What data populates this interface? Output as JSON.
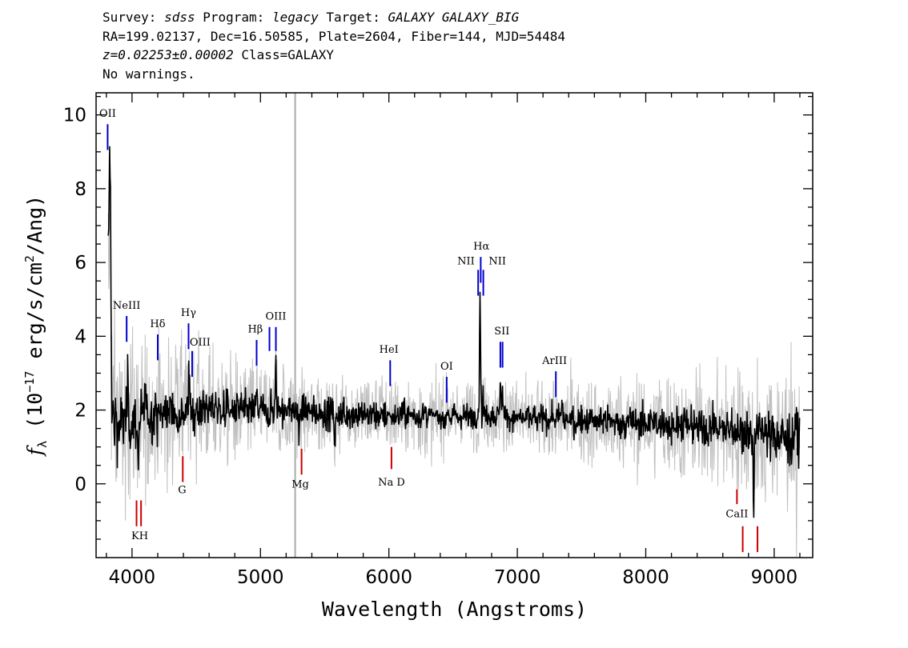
{
  "header": {
    "survey_label": "Survey:",
    "survey": "sdss",
    "program_label": "Program:",
    "program": "legacy",
    "target_label": "Target:",
    "target": "GALAXY GALAXY_BIG",
    "coords": "RA=199.02137, Dec=16.50585, Plate=2604, Fiber=144, MJD=54484",
    "redshift": "z=0.02253±0.00002",
    "class_text": "Class=GALAXY",
    "warnings": "No warnings."
  },
  "colors": {
    "flux": "#000000",
    "error": "#c0c0c0",
    "emission": "#0000cc",
    "absorption": "#cc0000",
    "marker": "#aaaaaa"
  },
  "chart_data": {
    "type": "line",
    "xlabel": "Wavelength (Angstroms)",
    "ylabel_parts": [
      "f",
      "λ",
      " (10",
      "−17",
      " erg/s/cm",
      "2",
      "/Ang)"
    ],
    "xlim": [
      3720,
      9300
    ],
    "ylim": [
      -2.0,
      10.6
    ],
    "x_ticks": [
      4000,
      5000,
      6000,
      7000,
      8000,
      9000
    ],
    "y_ticks": [
      0,
      2,
      4,
      6,
      8,
      10
    ],
    "vertical_marker_x": 5270,
    "spectrum_anchors": {
      "x": [
        3815,
        3830,
        3850,
        3900,
        4000,
        4200,
        4400,
        4600,
        4800,
        5000,
        5200,
        5400,
        5600,
        5800,
        6000,
        6200,
        6400,
        6600,
        6800,
        7000,
        7200,
        7400,
        7600,
        7800,
        8000,
        8200,
        8400,
        8600,
        8800,
        9000,
        9200
      ],
      "flux": [
        5.6,
        2.2,
        1.8,
        1.6,
        1.7,
        1.9,
        2.0,
        2.05,
        2.0,
        2.0,
        2.0,
        1.95,
        1.9,
        1.9,
        1.85,
        1.85,
        1.8,
        1.85,
        1.85,
        1.8,
        1.75,
        1.75,
        1.7,
        1.65,
        1.65,
        1.6,
        1.55,
        1.5,
        1.4,
        1.3,
        1.2
      ],
      "error": [
        2.0,
        1.6,
        1.5,
        1.3,
        1.2,
        1.0,
        0.9,
        0.8,
        0.75,
        0.7,
        0.65,
        0.6,
        0.6,
        0.6,
        0.55,
        0.55,
        0.5,
        0.5,
        0.5,
        0.5,
        0.55,
        0.6,
        0.6,
        0.65,
        0.7,
        0.75,
        0.8,
        0.85,
        0.9,
        1.0,
        1.1
      ]
    },
    "features": [
      {
        "x": 3829,
        "amp": 6.5,
        "w": 6
      },
      {
        "x": 3968,
        "amp": 1.2,
        "w": 4
      },
      {
        "x": 4102,
        "amp": 0.6,
        "w": 4
      },
      {
        "x": 4443,
        "amp": 0.8,
        "w": 4
      },
      {
        "x": 4972,
        "amp": 0.6,
        "w": 4
      },
      {
        "x": 5120,
        "amp": 1.3,
        "w": 4
      },
      {
        "x": 6456,
        "amp": 0.3,
        "w": 4
      },
      {
        "x": 6710,
        "amp": 3.4,
        "w": 4
      },
      {
        "x": 6732,
        "amp": 0.8,
        "w": 3
      },
      {
        "x": 6870,
        "amp": 1.0,
        "w": 4
      },
      {
        "x": 6884,
        "amp": 0.7,
        "w": 3
      },
      {
        "x": 7350,
        "amp": 0.4,
        "w": 4
      },
      {
        "x": 4050,
        "amp": -1.2,
        "w": 5
      },
      {
        "x": 5300,
        "amp": -0.7,
        "w": 4
      },
      {
        "x": 5580,
        "amp": -1.0,
        "w": 4
      },
      {
        "x": 8840,
        "amp": -2.0,
        "w": 4
      }
    ],
    "lines": [
      {
        "label": "OII",
        "x": 3810,
        "y1": 9.75,
        "y2": 9.05,
        "type": "emission",
        "lx": 3810,
        "ly": 9.95
      },
      {
        "label": "NeIII",
        "x": 3958,
        "y1": 4.55,
        "y2": 3.85,
        "type": "emission",
        "lx": 3958,
        "ly": 4.75
      },
      {
        "label": "Hδ",
        "x": 4200,
        "y1": 4.05,
        "y2": 3.35,
        "type": "emission",
        "lx": 4200,
        "ly": 4.25
      },
      {
        "label": "Hγ",
        "x": 4440,
        "y1": 4.35,
        "y2": 3.65,
        "type": "emission",
        "lx": 4440,
        "ly": 4.55
      },
      {
        "label": "OIII",
        "x": 4468,
        "y1": 3.6,
        "y2": 2.9,
        "type": "emission",
        "lx": 4530,
        "ly": 3.75
      },
      {
        "label": "Hβ",
        "x": 4970,
        "y1": 3.9,
        "y2": 3.2,
        "type": "emission",
        "lx": 4960,
        "ly": 4.1
      },
      {
        "label": "OIII",
        "x": 5070,
        "y1": 4.25,
        "y2": 3.6,
        "type": "emission",
        "lx": 5120,
        "ly": 4.45
      },
      {
        "label": "OIII",
        "x": 5120,
        "y1": 4.25,
        "y2": 3.6,
        "type": "emission",
        "lx": null,
        "ly": null
      },
      {
        "label": "HeI",
        "x": 6010,
        "y1": 3.35,
        "y2": 2.65,
        "type": "emission",
        "lx": 6000,
        "ly": 3.55
      },
      {
        "label": "OI",
        "x": 6450,
        "y1": 2.9,
        "y2": 2.2,
        "type": "emission",
        "lx": 6450,
        "ly": 3.1
      },
      {
        "label": "NII",
        "x": 6695,
        "y1": 5.8,
        "y2": 5.1,
        "type": "emission",
        "lx": 6600,
        "ly": 5.95
      },
      {
        "label": "Hα",
        "x": 6715,
        "y1": 6.15,
        "y2": 5.45,
        "type": "emission",
        "lx": 6720,
        "ly": 6.35
      },
      {
        "label": "NII",
        "x": 6735,
        "y1": 5.8,
        "y2": 5.1,
        "type": "emission",
        "lx": 6845,
        "ly": 5.95
      },
      {
        "label": "SII",
        "x": 6868,
        "y1": 3.85,
        "y2": 3.15,
        "type": "emission",
        "lx": 6880,
        "ly": 4.05
      },
      {
        "label": "SII",
        "x": 6885,
        "y1": 3.85,
        "y2": 3.15,
        "type": "emission",
        "lx": null,
        "ly": null
      },
      {
        "label": "ArIII",
        "x": 7300,
        "y1": 3.05,
        "y2": 2.35,
        "type": "emission",
        "lx": 7290,
        "ly": 3.25
      },
      {
        "label": "G",
        "x": 4395,
        "y1": 0.75,
        "y2": 0.05,
        "type": "absorption",
        "lx": 4390,
        "ly": -0.25
      },
      {
        "label": "KH",
        "x": 4035,
        "y1": -0.45,
        "y2": -1.15,
        "type": "absorption",
        "lx": 4060,
        "ly": -1.5
      },
      {
        "label": "KH",
        "x": 4070,
        "y1": -0.45,
        "y2": -1.15,
        "type": "absorption",
        "lx": null,
        "ly": null
      },
      {
        "label": "Mg",
        "x": 5320,
        "y1": 0.95,
        "y2": 0.25,
        "type": "absorption",
        "lx": 5310,
        "ly": -0.1
      },
      {
        "label": "Na D",
        "x": 6020,
        "y1": 1.0,
        "y2": 0.4,
        "type": "absorption",
        "lx": 6020,
        "ly": -0.05
      },
      {
        "label": "CaII",
        "x": 8710,
        "y1": -0.15,
        "y2": -0.55,
        "type": "absorption",
        "lx": 8710,
        "ly": -0.9
      },
      {
        "label": "CaII",
        "x": 8755,
        "y1": -1.15,
        "y2": -1.85,
        "type": "absorption",
        "lx": null,
        "ly": null
      },
      {
        "label": "CaII",
        "x": 8870,
        "y1": -1.15,
        "y2": -1.85,
        "type": "absorption",
        "lx": null,
        "ly": null
      }
    ]
  }
}
